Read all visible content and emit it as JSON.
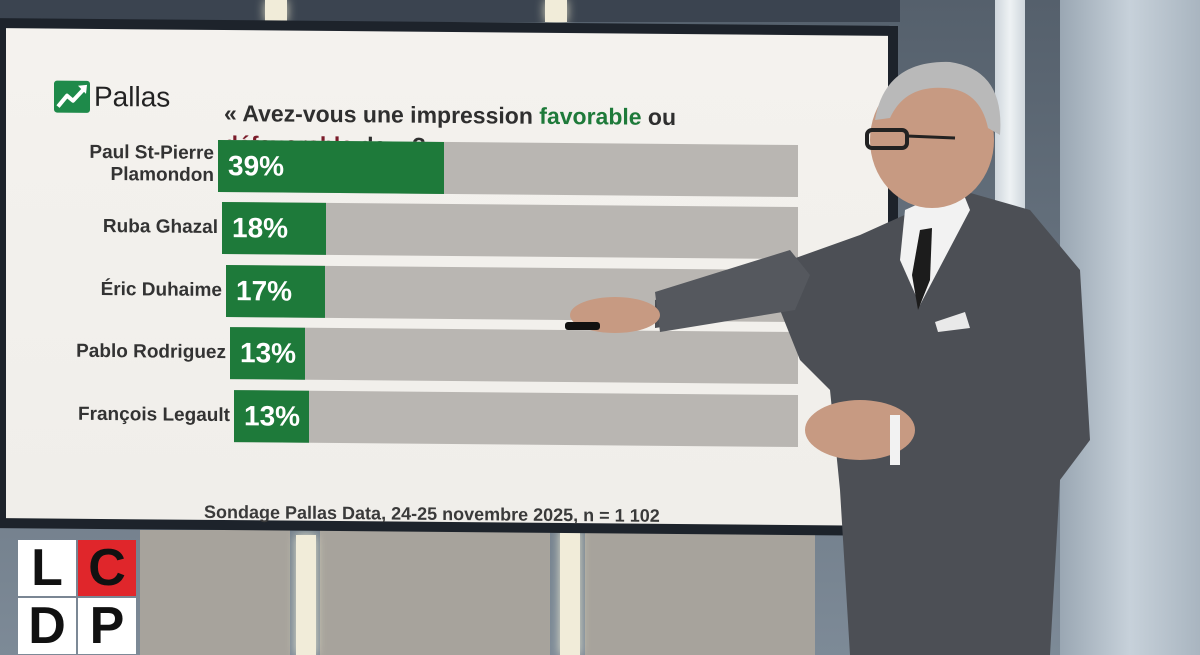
{
  "brand": {
    "name": "Pallas",
    "icon": "chart-arrow-icon",
    "color": "#1e8a4a"
  },
  "question": {
    "prefix": "« Avez-vous une impression ",
    "favorable": "favorable",
    "middle": " ou ",
    "defavorable": "défavorable",
    "suffix": " de... ? »",
    "favorable_color": "#1e7a3a",
    "defavorable_color": "#7a1c2a"
  },
  "chart_data": {
    "type": "bar",
    "orientation": "horizontal",
    "categories": [
      "Paul St-Pierre Plamondon",
      "Ruba Ghazal",
      "Éric Duhaime",
      "Pablo Rodriguez",
      "François Legault"
    ],
    "category_lines": [
      [
        "Paul St-Pierre",
        "Plamondon"
      ],
      [
        "Ruba Ghazal"
      ],
      [
        "Éric Duhaime"
      ],
      [
        "Pablo Rodriguez"
      ],
      [
        "François Legault"
      ]
    ],
    "values": [
      39,
      18,
      17,
      13,
      13
    ],
    "value_labels": [
      "39%",
      "18%",
      "17%",
      "13%",
      "13%"
    ],
    "xlim": [
      0,
      100
    ],
    "bar_color": "#1e7a3a",
    "track_color": "#b9b6b2",
    "grid": false,
    "legend": "none"
  },
  "source": "Sondage Pallas Data, 24-25 novembre 2025, n = 1 102",
  "channel_logo": {
    "letters": [
      "L",
      "C",
      "D",
      "P"
    ],
    "accent": "#e0262b"
  }
}
